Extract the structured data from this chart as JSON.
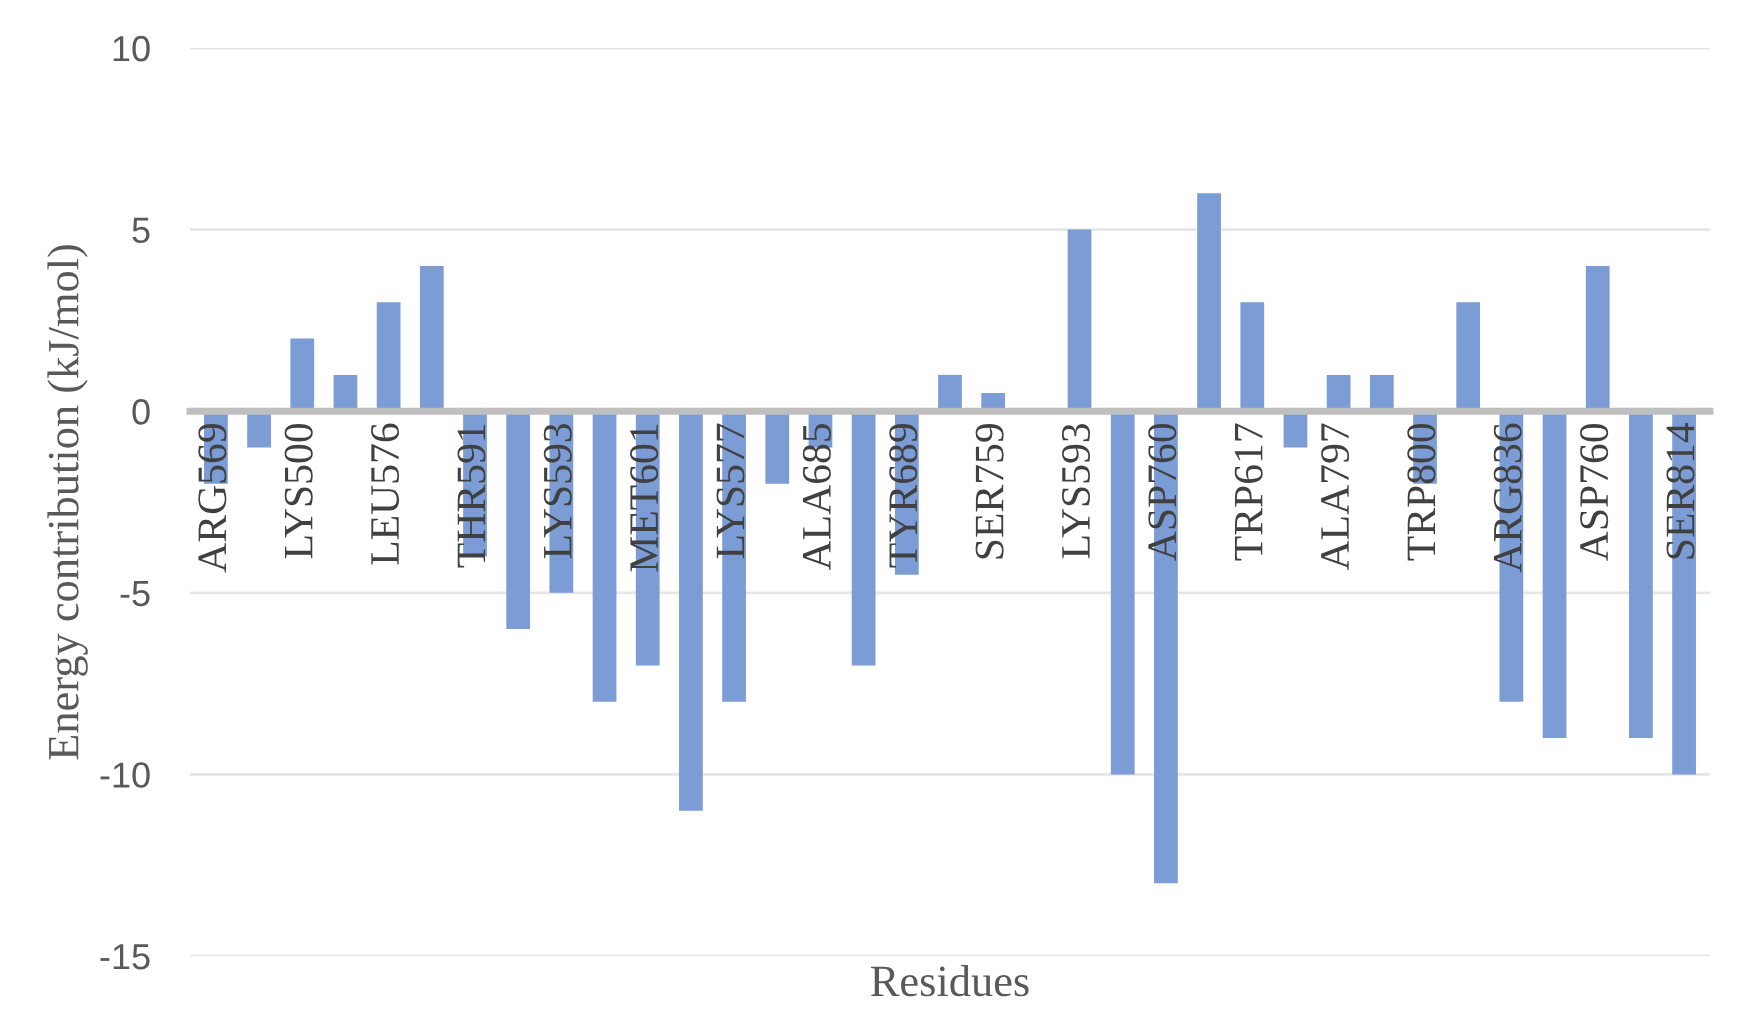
{
  "chart_data": {
    "type": "bar",
    "xlabel": "Residues",
    "ylabel": "Energy contribution (kJ/mol)",
    "categories": [
      "ARG569",
      null,
      "LYS500",
      null,
      "LEU576",
      null,
      "THR591",
      null,
      "LYS593",
      null,
      "MET601",
      null,
      "LYS577",
      null,
      "ALA685",
      null,
      "TYR689",
      null,
      "SER759",
      null,
      "LYS593",
      null,
      "ASP760",
      null,
      "TRP617",
      null,
      "ALA797",
      null,
      "TRP800",
      null,
      "ARG836",
      null,
      "ASP760",
      null,
      "SER814"
    ],
    "values": [
      -2,
      -1,
      2,
      1,
      3,
      4,
      -4,
      -6,
      -5,
      -8,
      -7,
      -11,
      -8,
      -2,
      -1,
      -7,
      -4.5,
      1,
      0.5,
      null,
      5,
      -10,
      -13,
      6,
      3,
      -1,
      1,
      1,
      -2,
      3,
      -8,
      -9,
      4,
      -9,
      -10
    ],
    "color": "#7b9cd5",
    "ylim": [
      -15,
      10
    ],
    "yticks": [
      -15,
      -10,
      -5,
      0,
      5,
      10
    ],
    "grid": "y",
    "legend": false
  }
}
